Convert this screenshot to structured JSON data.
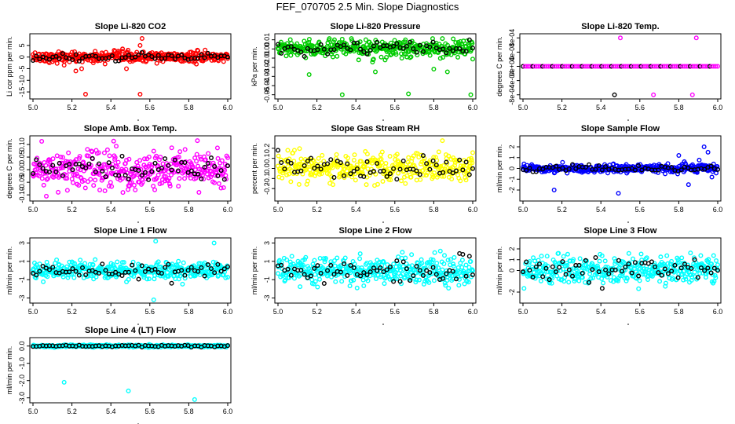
{
  "page_title": "FEF_070705  2.5 Min. Slope Diagnostics",
  "chart_data": [
    {
      "type": "scatter",
      "title": "Slope Li-820 CO2",
      "ylabel": "Li cor ppm per min.",
      "xlim": [
        5.0,
        6.0
      ],
      "x_ticks": [
        "5.0",
        "5.2",
        "5.4",
        "5.6",
        "5.8",
        "6.0"
      ],
      "y_ticks": [
        {
          "v": -15,
          "l": "-15"
        },
        {
          "v": -10,
          "l": "-10"
        },
        {
          "v": -5,
          "l": "-5"
        },
        {
          "v": 0,
          "l": "0"
        },
        {
          "v": 5,
          "l": "5"
        }
      ],
      "ylim": [
        -17,
        9
      ],
      "color": "#ff0000",
      "series": [
        {
          "role": "scatter",
          "center": 0,
          "spread": 2.0,
          "outliers": [
            [
              5.16,
              -3.5
            ],
            [
              5.22,
              -6
            ],
            [
              5.25,
              -5
            ],
            [
              5.27,
              -16
            ],
            [
              5.31,
              -2.5
            ],
            [
              5.37,
              -3
            ],
            [
              5.48,
              -5
            ],
            [
              5.55,
              -16
            ],
            [
              5.56,
              8
            ],
            [
              5.55,
              5
            ],
            [
              5.46,
              3.5
            ],
            [
              5.58,
              -2
            ]
          ]
        },
        {
          "role": "black",
          "values": [
            0,
            0,
            0,
            0
          ]
        }
      ]
    },
    {
      "type": "scatter",
      "title": "Slope Li-820 Pressure",
      "ylabel": "kPa per min.",
      "xlim": [
        5.0,
        6.0
      ],
      "x_ticks": [
        "5.0",
        "5.2",
        "5.4",
        "5.6",
        "5.8",
        "6.0"
      ],
      "y_ticks": [
        {
          "v": -0.05,
          "l": "-0.05"
        },
        {
          "v": -0.04,
          "l": "-0.04"
        },
        {
          "v": -0.03,
          "l": "-0.03"
        },
        {
          "v": -0.02,
          "l": "-0.02"
        },
        {
          "v": -0.01,
          "l": "-0.01"
        },
        {
          "v": 0.0,
          "l": "0.00"
        },
        {
          "v": 0.01,
          "l": "0.01"
        }
      ],
      "ylim": [
        -0.052,
        0.014
      ],
      "color": "#00cc00",
      "series": [
        {
          "role": "scatter",
          "center": 0,
          "spread": 0.008,
          "outliers": [
            [
              5.16,
              -0.028
            ],
            [
              5.33,
              -0.05
            ],
            [
              5.5,
              -0.025
            ],
            [
              5.55,
              -0.012
            ],
            [
              5.67,
              -0.049
            ],
            [
              5.8,
              -0.022
            ],
            [
              5.87,
              -0.025
            ],
            [
              5.99,
              -0.05
            ],
            [
              5.29,
              0.01
            ]
          ]
        },
        {
          "role": "black",
          "values": [
            0,
            0.0,
            0.01
          ]
        }
      ]
    },
    {
      "type": "scatter",
      "title": "Slope Li-820 Temp.",
      "ylabel": "degrees C per min.",
      "xlim": [
        5.0,
        6.0
      ],
      "x_ticks": [
        "5.0",
        "5.2",
        "5.4",
        "5.6",
        "5.8",
        "6.0"
      ],
      "y_ticks": [
        {
          "v": -0.0008,
          "l": "-8e-04"
        },
        {
          "v": -0.0004,
          "l": "-4e-04"
        },
        {
          "v": 0.0,
          "l": "0e+00"
        },
        {
          "v": 0.0004,
          "l": "4e-04"
        },
        {
          "v": 0.0008,
          "l": "8e-04"
        }
      ],
      "ylim": [
        -0.00085,
        0.00085
      ],
      "color": "#ff00ff",
      "series": [
        {
          "role": "line",
          "value": 0
        },
        {
          "role": "outliers",
          "points": [
            [
              5.5,
              0.0008
            ],
            [
              5.89,
              0.0008
            ],
            [
              5.67,
              -0.0008
            ],
            [
              5.87,
              -0.0008
            ],
            [
              5.47,
              -0.0008
            ]
          ]
        }
      ]
    },
    {
      "type": "scatter",
      "title": "Slope Amb. Box Temp.",
      "ylabel": "degrees C per min.",
      "xlim": [
        5.0,
        6.0
      ],
      "x_ticks": [
        "5.0",
        "5.2",
        "5.4",
        "5.6",
        "5.8",
        "6.0"
      ],
      "y_ticks": [
        {
          "v": -0.1,
          "l": "-0.10"
        },
        {
          "v": -0.05,
          "l": "-0.05"
        },
        {
          "v": 0.0,
          "l": "0.00"
        },
        {
          "v": 0.05,
          "l": "0.05"
        },
        {
          "v": 0.1,
          "l": "0.10"
        }
      ],
      "ylim": [
        -0.115,
        0.125
      ],
      "color": "#ff00ff",
      "series": [
        {
          "role": "scatter",
          "center": 0,
          "spread": 0.07,
          "outliers": []
        },
        {
          "role": "black",
          "values": []
        }
      ]
    },
    {
      "type": "scatter",
      "title": "Slope Gas Stream RH",
      "ylabel": "percent per min.",
      "xlim": [
        5.0,
        6.0
      ],
      "x_ticks": [
        "5.0",
        "5.2",
        "5.4",
        "5.6",
        "5.8",
        "6.0"
      ],
      "y_ticks": [
        {
          "v": -0.2,
          "l": "-0.2"
        },
        {
          "v": -0.1,
          "l": "-0.1"
        },
        {
          "v": 0.0,
          "l": "0.0"
        },
        {
          "v": 0.1,
          "l": "0.1"
        },
        {
          "v": 0.2,
          "l": "0.2"
        }
      ],
      "ylim": [
        -0.3,
        0.3
      ],
      "color": "#ffff00",
      "series": [
        {
          "role": "scatter",
          "center": 0,
          "spread": 0.13,
          "outliers": []
        },
        {
          "role": "black",
          "values": []
        }
      ]
    },
    {
      "type": "scatter",
      "title": "Slope Sample Flow",
      "ylabel": "ml/min per min.",
      "xlim": [
        5.0,
        6.0
      ],
      "x_ticks": [
        "5.0",
        "5.2",
        "5.4",
        "5.6",
        "5.8",
        "6.0"
      ],
      "y_ticks": [
        {
          "v": -2,
          "l": "-2"
        },
        {
          "v": -1,
          "l": "-1"
        },
        {
          "v": 0,
          "l": "0"
        },
        {
          "v": 1,
          "l": "1"
        },
        {
          "v": 2,
          "l": "2"
        }
      ],
      "ylim": [
        -2.8,
        2.8
      ],
      "color": "#0000ff",
      "series": [
        {
          "role": "scatter",
          "center": 0,
          "spread": 0.35,
          "outliers": [
            [
              5.16,
              -2
            ],
            [
              5.49,
              -2.3
            ],
            [
              5.73,
              -0.5
            ],
            [
              5.8,
              1.2
            ],
            [
              5.85,
              -1.5
            ],
            [
              5.93,
              2
            ],
            [
              5.95,
              1.5
            ],
            [
              5.97,
              -0.8
            ]
          ]
        },
        {
          "role": "black",
          "values": []
        }
      ]
    },
    {
      "type": "scatter",
      "title": "Slope Line 1 Flow",
      "ylabel": "ml/min per min.",
      "xlim": [
        5.0,
        6.0
      ],
      "x_ticks": [
        "5.0",
        "5.2",
        "5.4",
        "5.6",
        "5.8",
        "6.0"
      ],
      "y_ticks": [
        {
          "v": -3,
          "l": "-3"
        },
        {
          "v": -1,
          "l": "-1"
        },
        {
          "v": 1,
          "l": "1"
        },
        {
          "v": 3,
          "l": "3"
        }
      ],
      "ylim": [
        -3.3,
        3.3
      ],
      "color": "#00ffff",
      "series": [
        {
          "role": "scatter",
          "center": 0,
          "spread": 0.9,
          "outliers": [
            [
              5.62,
              -3.2
            ],
            [
              5.63,
              3.2
            ],
            [
              5.93,
              3
            ]
          ]
        },
        {
          "role": "black",
          "values": []
        }
      ]
    },
    {
      "type": "scatter",
      "title": "Slope Line 2 Flow",
      "ylabel": "ml/min per min.",
      "xlim": [
        5.0,
        6.0
      ],
      "x_ticks": [
        "5.0",
        "5.2",
        "5.4",
        "5.6",
        "5.8",
        "6.0"
      ],
      "y_ticks": [
        {
          "v": -3,
          "l": "-3"
        },
        {
          "v": -1,
          "l": "-1"
        },
        {
          "v": 1,
          "l": "1"
        },
        {
          "v": 3,
          "l": "3"
        }
      ],
      "ylim": [
        -3.3,
        3.3
      ],
      "color": "#00ffff",
      "series": [
        {
          "role": "scatter",
          "center": 0,
          "spread": 1.3,
          "outliers": []
        },
        {
          "role": "black",
          "values": []
        }
      ]
    },
    {
      "type": "scatter",
      "title": "Slope Line 3 Flow",
      "ylabel": "ml/min per min.",
      "xlim": [
        5.0,
        6.0
      ],
      "x_ticks": [
        "5.0",
        "5.2",
        "5.4",
        "5.6",
        "5.8",
        "6.0"
      ],
      "y_ticks": [
        {
          "v": -2,
          "l": "-2"
        },
        {
          "v": 0,
          "l": "0"
        },
        {
          "v": 1,
          "l": "1"
        },
        {
          "v": 2,
          "l": "2"
        }
      ],
      "ylim": [
        -2.8,
        2.8
      ],
      "color": "#00ffff",
      "series": [
        {
          "role": "scatter",
          "center": 0,
          "spread": 1.2,
          "outliers": []
        },
        {
          "role": "black",
          "values": []
        }
      ]
    },
    {
      "type": "scatter",
      "title": "Slope Line 4 (LT) Flow",
      "ylabel": "ml/min per min.",
      "xlim": [
        5.0,
        6.0
      ],
      "x_ticks": [
        "5.0",
        "5.2",
        "5.4",
        "5.6",
        "5.8",
        "6.0"
      ],
      "y_ticks": [
        {
          "v": -3.0,
          "l": "-3.0"
        },
        {
          "v": -2.0,
          "l": "-2.0"
        },
        {
          "v": -1.0,
          "l": "-1.0"
        },
        {
          "v": 0.0,
          "l": "0.0"
        }
      ],
      "ylim": [
        -3.15,
        0.35
      ],
      "color": "#00ffff",
      "series": [
        {
          "role": "scatter",
          "center": 0,
          "spread": 0.06,
          "outliers": [
            [
              5.16,
              -2.1
            ],
            [
              5.49,
              -2.6
            ],
            [
              5.83,
              -3.1
            ]
          ]
        },
        {
          "role": "black",
          "values": []
        }
      ]
    }
  ]
}
